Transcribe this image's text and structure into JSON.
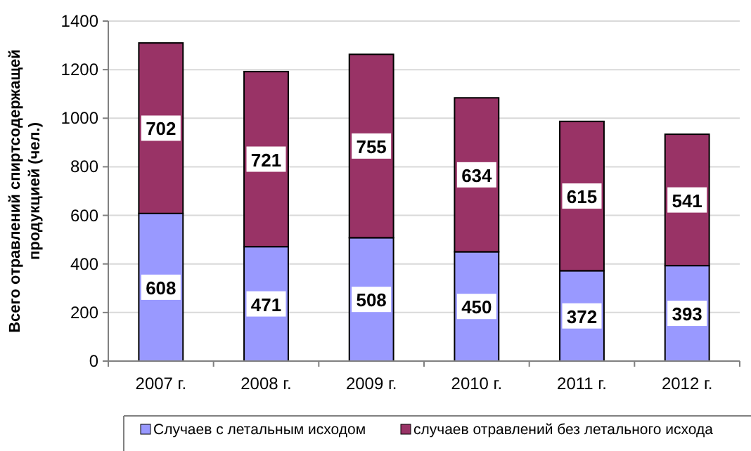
{
  "chart_data": {
    "type": "bar",
    "stacked": true,
    "ylabel": "Всего отравлений спиртсодержащей\nпродукцией (чел.)",
    "categories": [
      "2007 г.",
      "2008 г.",
      "2009 г.",
      "2010 г.",
      "2011 г.",
      "2012 г."
    ],
    "series": [
      {
        "name": "Случаев с летальным исходом",
        "color": "#9999ff",
        "values": [
          608,
          471,
          508,
          450,
          372,
          393
        ]
      },
      {
        "name": "случаев отравлений без летального исхода",
        "color": "#993366",
        "values": [
          702,
          721,
          755,
          634,
          615,
          541
        ]
      }
    ],
    "ylim": [
      0,
      1400
    ],
    "yticks": [
      0,
      200,
      400,
      600,
      800,
      1000,
      1200,
      1400
    ],
    "grid": "y",
    "data_labels": true,
    "legend": "bottom"
  }
}
